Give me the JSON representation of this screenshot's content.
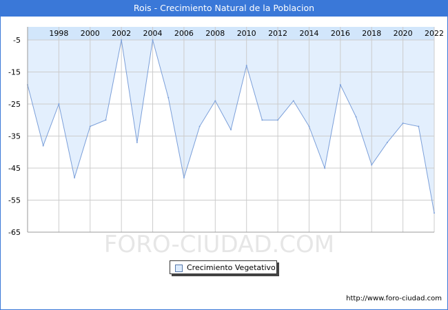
{
  "window": {
    "title": "Rois - Crecimiento Natural de la Poblacion"
  },
  "watermark": "FORO-CIUDAD.COM",
  "footer": {
    "url": "http://www.foro-ciudad.com"
  },
  "colors": {
    "title_bar": "#3a78d8",
    "area_fill": "#dcebfd",
    "line": "#7b9fd9",
    "grid": "#cccccc"
  },
  "chart_data": {
    "type": "area",
    "title": "Rois - Crecimiento Natural de la Poblacion",
    "xlabel": "",
    "ylabel": "",
    "x_axis_position": "top",
    "x": [
      1996,
      1997,
      1998,
      1999,
      2000,
      2001,
      2002,
      2003,
      2004,
      2005,
      2006,
      2007,
      2008,
      2009,
      2010,
      2011,
      2012,
      2013,
      2014,
      2015,
      2016,
      2017,
      2018,
      2019,
      2020,
      2021,
      2022
    ],
    "x_ticks": [
      "1998",
      "2000",
      "2002",
      "2004",
      "2006",
      "2008",
      "2010",
      "2012",
      "2014",
      "2016",
      "2018",
      "2020",
      "2022"
    ],
    "y_ticks": [
      "-5",
      "-15",
      "-25",
      "-35",
      "-45",
      "-55",
      "-65"
    ],
    "ylim": [
      -65,
      -5
    ],
    "grid": true,
    "legend_position": "bottom-center",
    "series": [
      {
        "name": "Crecimiento Vegetativo",
        "values": [
          -19,
          -38,
          -25,
          -48,
          -32,
          -30,
          -5,
          -37,
          -5,
          -23,
          -48,
          -32,
          -24,
          -33,
          -13,
          -30,
          -30,
          -24,
          -32,
          -45,
          -19,
          -29,
          -44,
          -37,
          -31,
          -32,
          -59
        ]
      }
    ]
  }
}
